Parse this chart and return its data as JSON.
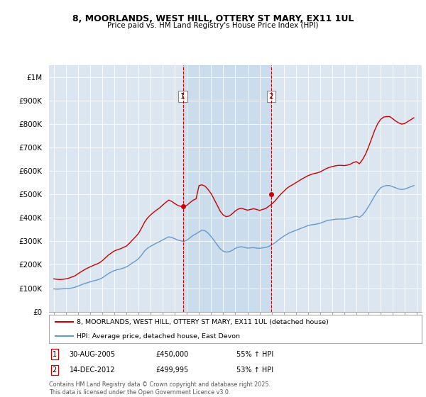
{
  "title": "8, MOORLANDS, WEST HILL, OTTERY ST MARY, EX11 1UL",
  "subtitle": "Price paid vs. HM Land Registry's House Price Index (HPI)",
  "background_color": "#ffffff",
  "plot_bg_color": "#dce6f1",
  "ylim": [
    0,
    1050000
  ],
  "yticks": [
    0,
    100000,
    200000,
    300000,
    400000,
    500000,
    600000,
    700000,
    800000,
    900000,
    1000000
  ],
  "ytick_labels": [
    "£0",
    "£100K",
    "£200K",
    "£300K",
    "£400K",
    "£500K",
    "£600K",
    "£700K",
    "£800K",
    "£900K",
    "£1M"
  ],
  "xlim_start": 1994.6,
  "xlim_end": 2025.4,
  "sale1_x": 2005.66,
  "sale1_y": 450000,
  "sale2_x": 2012.95,
  "sale2_y": 499995,
  "sale1_date": "30-AUG-2005",
  "sale1_price": "£450,000",
  "sale1_hpi": "55% ↑ HPI",
  "sale2_date": "14-DEC-2012",
  "sale2_price": "£499,995",
  "sale2_hpi": "53% ↑ HPI",
  "red_color": "#cc0000",
  "blue_color": "#6699cc",
  "legend_label1": "8, MOORLANDS, WEST HILL, OTTERY ST MARY, EX11 1UL (detached house)",
  "legend_label2": "HPI: Average price, detached house, East Devon",
  "footer": "Contains HM Land Registry data © Crown copyright and database right 2025.\nThis data is licensed under the Open Government Licence v3.0.",
  "hpi_data_x": [
    1995.0,
    1995.25,
    1995.5,
    1995.75,
    1996.0,
    1996.25,
    1996.5,
    1996.75,
    1997.0,
    1997.25,
    1997.5,
    1997.75,
    1998.0,
    1998.25,
    1998.5,
    1998.75,
    1999.0,
    1999.25,
    1999.5,
    1999.75,
    2000.0,
    2000.25,
    2000.5,
    2000.75,
    2001.0,
    2001.25,
    2001.5,
    2001.75,
    2002.0,
    2002.25,
    2002.5,
    2002.75,
    2003.0,
    2003.25,
    2003.5,
    2003.75,
    2004.0,
    2004.25,
    2004.5,
    2004.75,
    2005.0,
    2005.25,
    2005.5,
    2005.75,
    2006.0,
    2006.25,
    2006.5,
    2006.75,
    2007.0,
    2007.25,
    2007.5,
    2007.75,
    2008.0,
    2008.25,
    2008.5,
    2008.75,
    2009.0,
    2009.25,
    2009.5,
    2009.75,
    2010.0,
    2010.25,
    2010.5,
    2010.75,
    2011.0,
    2011.25,
    2011.5,
    2011.75,
    2012.0,
    2012.25,
    2012.5,
    2012.75,
    2013.0,
    2013.25,
    2013.5,
    2013.75,
    2014.0,
    2014.25,
    2014.5,
    2014.75,
    2015.0,
    2015.25,
    2015.5,
    2015.75,
    2016.0,
    2016.25,
    2016.5,
    2016.75,
    2017.0,
    2017.25,
    2017.5,
    2017.75,
    2018.0,
    2018.25,
    2018.5,
    2018.75,
    2019.0,
    2019.25,
    2019.5,
    2019.75,
    2020.0,
    2020.25,
    2020.5,
    2020.75,
    2021.0,
    2021.25,
    2021.5,
    2021.75,
    2022.0,
    2022.25,
    2022.5,
    2022.75,
    2023.0,
    2023.25,
    2023.5,
    2023.75,
    2024.0,
    2024.25,
    2024.5,
    2024.75
  ],
  "hpi_data_y": [
    97000,
    96000,
    96500,
    97500,
    98500,
    99000,
    101000,
    104000,
    109000,
    114000,
    119000,
    123000,
    127000,
    131000,
    134000,
    138000,
    144000,
    153000,
    162000,
    169000,
    175000,
    179000,
    182000,
    186000,
    191000,
    199000,
    208000,
    216000,
    226000,
    241000,
    259000,
    271000,
    279000,
    286000,
    293000,
    299000,
    306000,
    313000,
    319000,
    316000,
    311000,
    305000,
    302000,
    300000,
    305000,
    315000,
    325000,
    332000,
    340000,
    348000,
    345000,
    335000,
    320000,
    303000,
    285000,
    268000,
    258000,
    254000,
    256000,
    262000,
    270000,
    275000,
    277000,
    274000,
    271000,
    272000,
    273000,
    271000,
    270000,
    272000,
    274000,
    278000,
    285000,
    293000,
    303000,
    313000,
    322000,
    330000,
    337000,
    342000,
    347000,
    352000,
    357000,
    362000,
    367000,
    370000,
    372000,
    374000,
    377000,
    382000,
    387000,
    390000,
    392000,
    394000,
    395000,
    395000,
    395000,
    397000,
    400000,
    404000,
    407000,
    402000,
    412000,
    428000,
    448000,
    470000,
    493000,
    513000,
    528000,
    535000,
    538000,
    538000,
    533000,
    528000,
    523000,
    521000,
    523000,
    528000,
    533000,
    538000
  ],
  "price_data_x": [
    1995.0,
    1995.25,
    1995.5,
    1995.75,
    1996.0,
    1996.25,
    1996.5,
    1996.75,
    1997.0,
    1997.25,
    1997.5,
    1997.75,
    1998.0,
    1998.25,
    1998.5,
    1998.75,
    1999.0,
    1999.25,
    1999.5,
    1999.75,
    2000.0,
    2000.25,
    2000.5,
    2000.75,
    2001.0,
    2001.25,
    2001.5,
    2001.75,
    2002.0,
    2002.25,
    2002.5,
    2002.75,
    2003.0,
    2003.25,
    2003.5,
    2003.75,
    2004.0,
    2004.25,
    2004.5,
    2004.75,
    2005.0,
    2005.25,
    2005.5,
    2005.75,
    2006.0,
    2006.25,
    2006.5,
    2006.75,
    2007.0,
    2007.25,
    2007.5,
    2007.75,
    2008.0,
    2008.25,
    2008.5,
    2008.75,
    2009.0,
    2009.25,
    2009.5,
    2009.75,
    2010.0,
    2010.25,
    2010.5,
    2010.75,
    2011.0,
    2011.25,
    2011.5,
    2011.75,
    2012.0,
    2012.25,
    2012.5,
    2012.75,
    2013.0,
    2013.25,
    2013.5,
    2013.75,
    2014.0,
    2014.25,
    2014.5,
    2014.75,
    2015.0,
    2015.25,
    2015.5,
    2015.75,
    2016.0,
    2016.25,
    2016.5,
    2016.75,
    2017.0,
    2017.25,
    2017.5,
    2017.75,
    2018.0,
    2018.25,
    2018.5,
    2018.75,
    2019.0,
    2019.25,
    2019.5,
    2019.75,
    2020.0,
    2020.25,
    2020.5,
    2020.75,
    2021.0,
    2021.25,
    2021.5,
    2021.75,
    2022.0,
    2022.25,
    2022.5,
    2022.75,
    2023.0,
    2023.25,
    2023.5,
    2023.75,
    2024.0,
    2024.25,
    2024.5,
    2024.75
  ],
  "price_data_y": [
    140000,
    138000,
    137000,
    138000,
    140000,
    143000,
    148000,
    153000,
    162000,
    170000,
    178000,
    185000,
    191000,
    197000,
    202000,
    208000,
    217000,
    229000,
    241000,
    250000,
    259000,
    264000,
    268000,
    274000,
    280000,
    292000,
    306000,
    319000,
    334000,
    357000,
    382000,
    400000,
    413000,
    424000,
    434000,
    443000,
    455000,
    466000,
    476000,
    470000,
    461000,
    453000,
    449000,
    447000,
    454000,
    465000,
    475000,
    481000,
    538000,
    541000,
    535000,
    521000,
    503000,
    479000,
    454000,
    428000,
    412000,
    405000,
    408000,
    418000,
    430000,
    438000,
    441000,
    437000,
    433000,
    436000,
    439000,
    436000,
    432000,
    436000,
    440000,
    449000,
    459000,
    471000,
    486000,
    501000,
    513000,
    526000,
    535000,
    542000,
    550000,
    558000,
    566000,
    573000,
    580000,
    585000,
    589000,
    592000,
    596000,
    603000,
    610000,
    615000,
    619000,
    622000,
    624000,
    624000,
    623000,
    625000,
    629000,
    636000,
    640000,
    631000,
    648000,
    671000,
    702000,
    737000,
    772000,
    801000,
    820000,
    830000,
    832000,
    832000,
    823000,
    813000,
    805000,
    800000,
    803000,
    811000,
    819000,
    827000
  ]
}
